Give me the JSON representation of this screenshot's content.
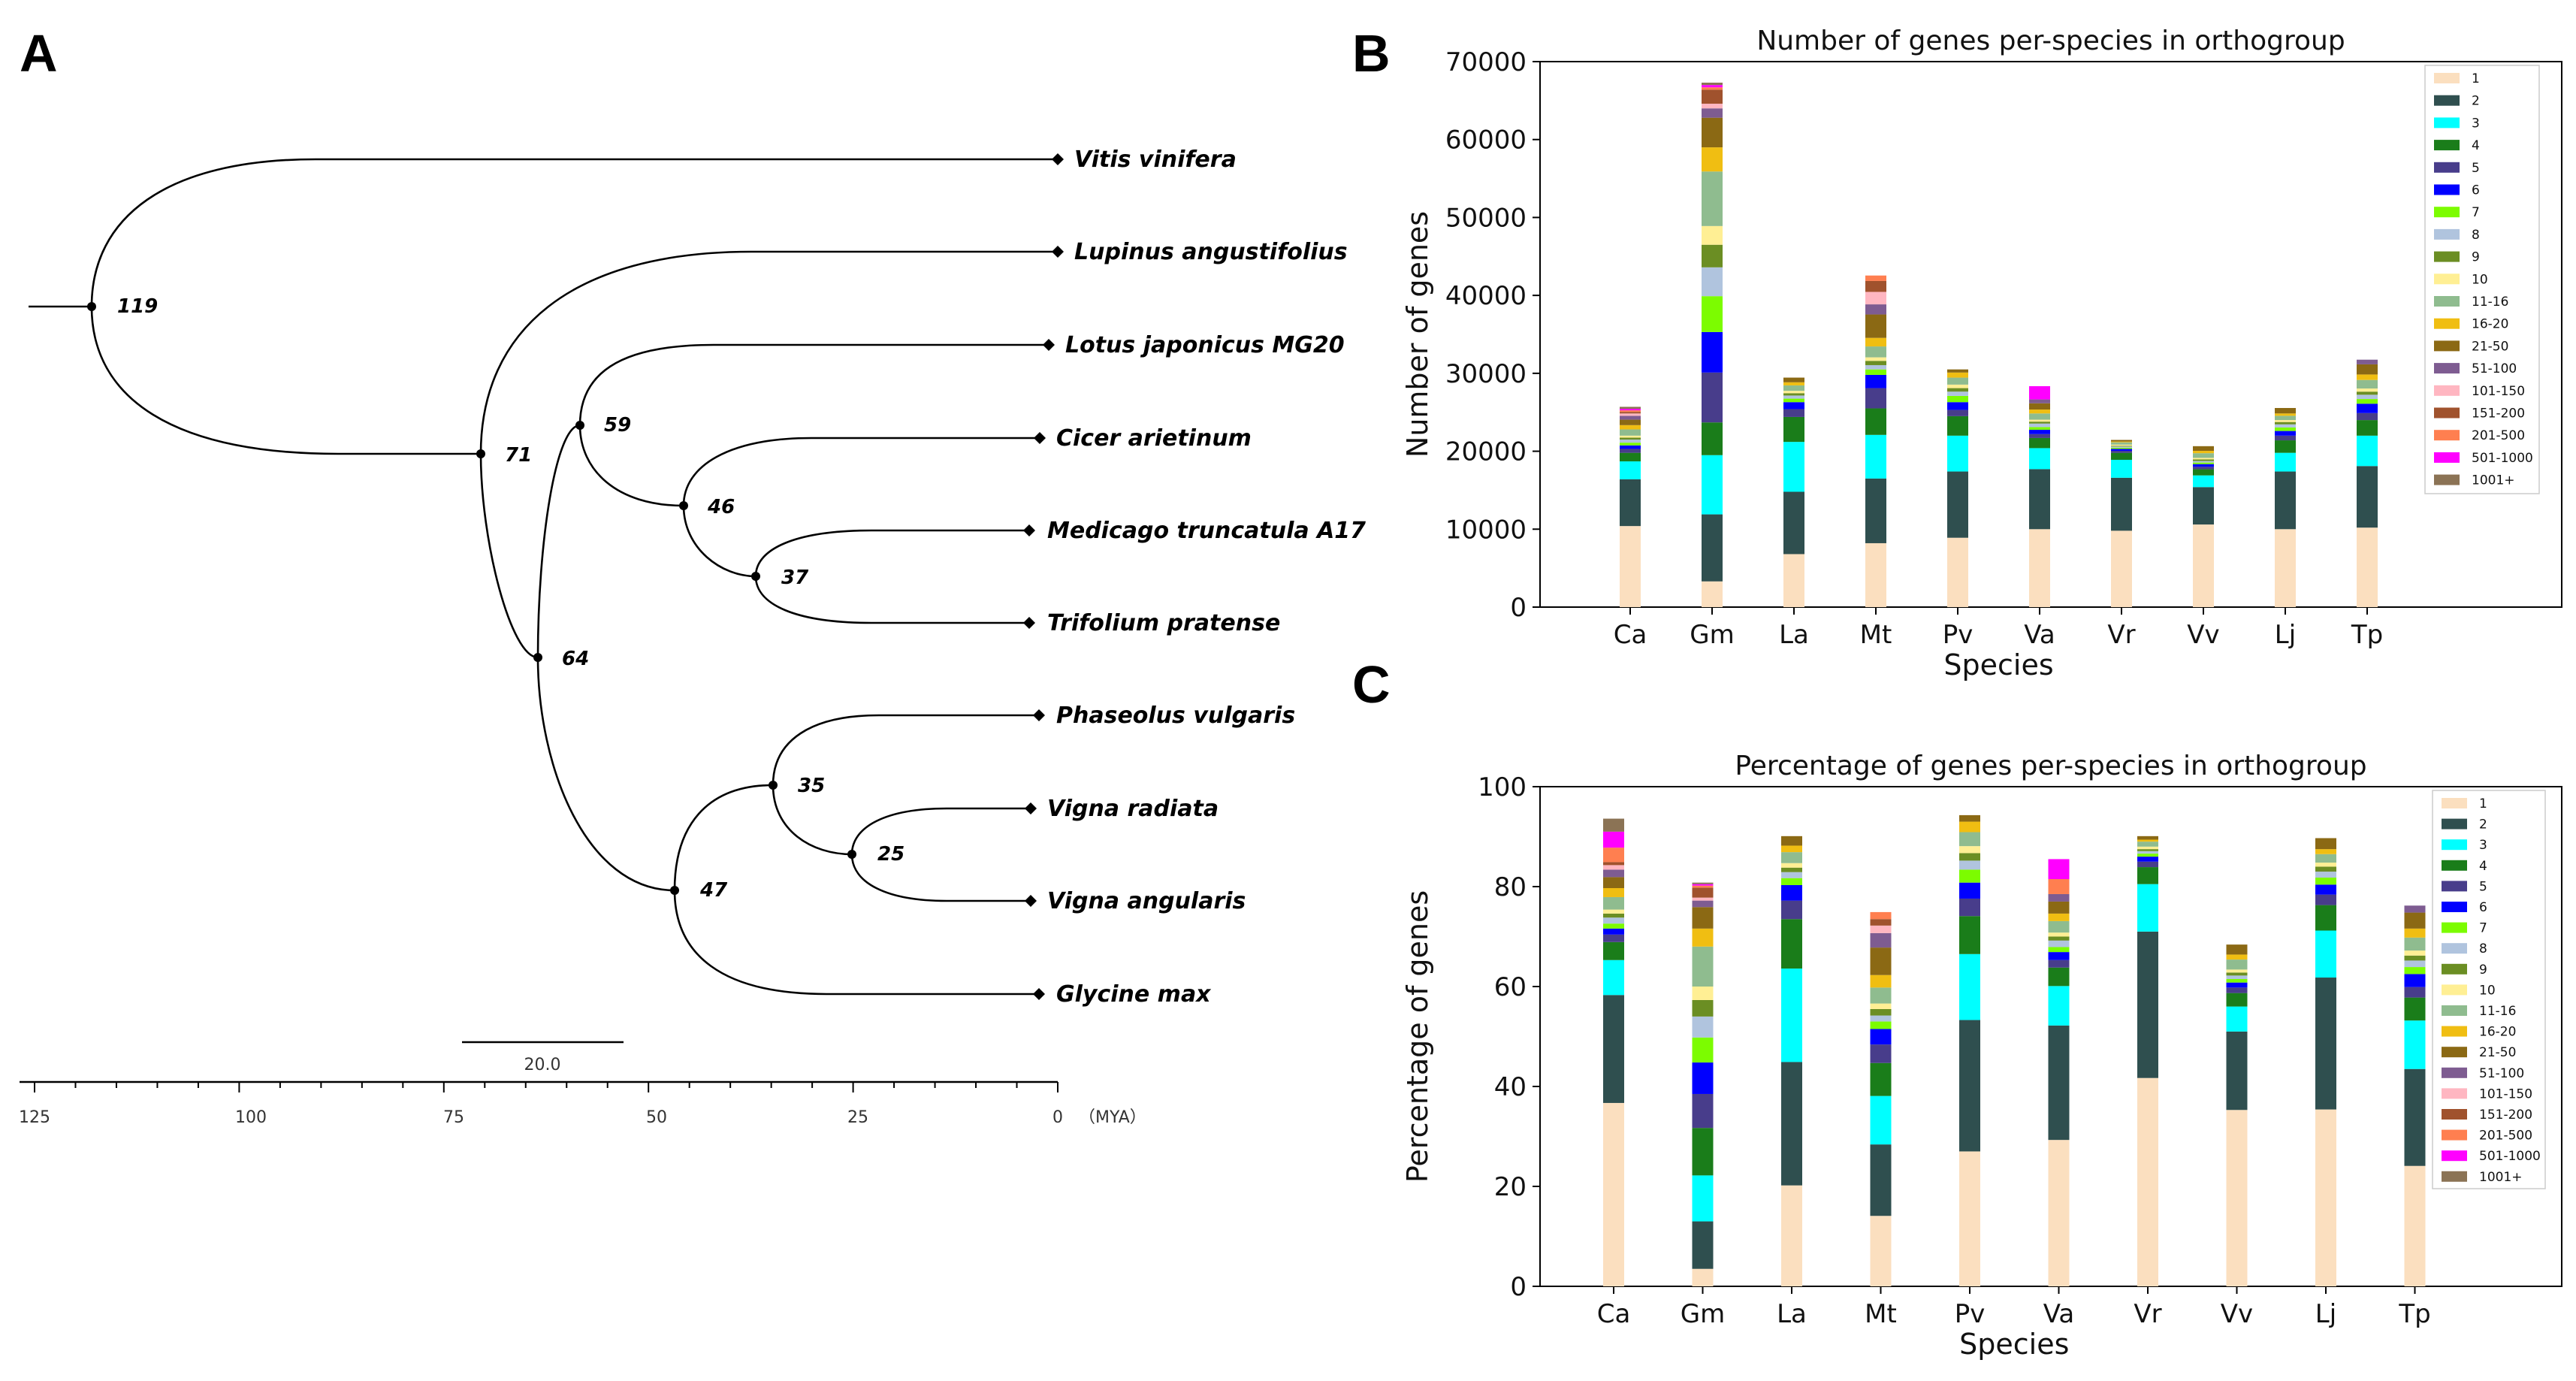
{
  "panels": {
    "a": "A",
    "b": "B",
    "c": "C"
  },
  "tree": {
    "taxa": [
      "Vitis vinifera",
      "Lupinus angustifolius",
      "Lotus japonicus MG20",
      "Cicer arietinum",
      "Medicago truncatula A17",
      "Trifolium pratense",
      "Phaseolus vulgaris",
      "Vigna radiata",
      "Vigna angularis",
      "Glycine max"
    ],
    "node_ages": [
      "119",
      "71",
      "59",
      "46",
      "37",
      "64",
      "35",
      "25",
      "47"
    ],
    "scale_bar_label": "20.0",
    "timeline_ticks": [
      "125",
      "100",
      "75",
      "50",
      "25",
      "0"
    ],
    "timeline_unit": "（MYA）"
  },
  "chart_data": [
    {
      "type": "bar",
      "stacked": true,
      "title": "Number of genes per-species in orthogroup",
      "xlabel": "Species",
      "ylabel": "Number of genes",
      "ylim": [
        0,
        70000
      ],
      "yticks": [
        "0",
        "10000",
        "20000",
        "30000",
        "40000",
        "50000",
        "60000",
        "70000"
      ],
      "legend_position": "top-right",
      "categories": [
        "Ca",
        "Gm",
        "La",
        "Mt",
        "Pv",
        "Va",
        "Vr",
        "Vv",
        "Lj",
        "Tp"
      ],
      "series": [
        {
          "name": "1",
          "color": "#fbdfbf",
          "values": [
            10400,
            3300,
            6800,
            8200,
            8900,
            10000,
            9800,
            10600,
            10000,
            10200
          ]
        },
        {
          "name": "2",
          "color": "#2f4f4f",
          "values": [
            6000,
            8600,
            8000,
            8300,
            8500,
            7700,
            6800,
            4800,
            7400,
            7900
          ]
        },
        {
          "name": "3",
          "color": "#00ffff",
          "values": [
            2300,
            7600,
            6400,
            5600,
            4600,
            2700,
            2300,
            1500,
            2400,
            3900
          ]
        },
        {
          "name": "4",
          "color": "#1a7d1a",
          "values": [
            1100,
            4200,
            3200,
            3400,
            2500,
            1300,
            900,
            800,
            1600,
            2000
          ]
        },
        {
          "name": "5",
          "color": "#483d8b",
          "values": [
            500,
            6400,
            1000,
            2600,
            800,
            500,
            250,
            300,
            600,
            900
          ]
        },
        {
          "name": "6",
          "color": "#0000ff",
          "values": [
            450,
            5200,
            900,
            1700,
            1000,
            550,
            250,
            350,
            600,
            1200
          ]
        },
        {
          "name": "7",
          "color": "#7cfc00",
          "values": [
            350,
            4600,
            450,
            700,
            800,
            350,
            150,
            200,
            450,
            600
          ]
        },
        {
          "name": "8",
          "color": "#b0c4de",
          "values": [
            400,
            3700,
            400,
            550,
            550,
            450,
            150,
            200,
            400,
            550
          ]
        },
        {
          "name": "9",
          "color": "#6b8e23",
          "values": [
            250,
            2900,
            300,
            550,
            450,
            250,
            100,
            200,
            300,
            400
          ]
        },
        {
          "name": "10",
          "color": "#ffef94",
          "values": [
            250,
            2400,
            300,
            450,
            450,
            250,
            150,
            200,
            250,
            400
          ]
        },
        {
          "name": "11-16",
          "color": "#8fbc8f",
          "values": [
            800,
            7000,
            700,
            1400,
            900,
            800,
            300,
            600,
            550,
            1100
          ]
        },
        {
          "name": "16-20",
          "color": "#f0be12",
          "values": [
            550,
            3100,
            400,
            1100,
            650,
            500,
            100,
            300,
            300,
            700
          ]
        },
        {
          "name": "21-50",
          "color": "#8b6914",
          "values": [
            700,
            3800,
            600,
            3000,
            400,
            800,
            200,
            600,
            700,
            1300
          ]
        },
        {
          "name": "51-100",
          "color": "#7e5c91",
          "values": [
            500,
            1200,
            0,
            1300,
            0,
            500,
            0,
            0,
            0,
            600
          ]
        },
        {
          "name": "101-150",
          "color": "#ffb6c1",
          "values": [
            300,
            600,
            0,
            1600,
            0,
            0,
            0,
            0,
            0,
            0
          ]
        },
        {
          "name": "151-200",
          "color": "#a0522d",
          "values": [
            200,
            1800,
            0,
            1400,
            0,
            0,
            0,
            0,
            0,
            0
          ]
        },
        {
          "name": "201-500",
          "color": "#ff7f50",
          "values": [
            200,
            300,
            0,
            700,
            0,
            0,
            0,
            0,
            0,
            0
          ]
        },
        {
          "name": "501-1000",
          "color": "#ff00ff",
          "values": [
            200,
            300,
            0,
            0,
            0,
            1700,
            0,
            0,
            0,
            0
          ]
        },
        {
          "name": "1001+",
          "color": "#8b7355",
          "values": [
            250,
            300,
            0,
            0,
            0,
            0,
            0,
            0,
            0,
            0
          ]
        }
      ]
    },
    {
      "type": "bar",
      "stacked": true,
      "title": "Percentage of genes per-species in orthogroup",
      "xlabel": "Species",
      "ylabel": "Percentage of genes",
      "ylim": [
        0,
        100
      ],
      "yticks": [
        "0",
        "20",
        "40",
        "60",
        "80",
        "100"
      ],
      "legend_position": "top-right",
      "categories": [
        "Ca",
        "Gm",
        "La",
        "Mt",
        "Pv",
        "Va",
        "Vr",
        "Vv",
        "Lj",
        "Tp"
      ],
      "series": [
        {
          "name": "1",
          "color": "#fbdfbf",
          "values": [
            36.7,
            3.5,
            20.2,
            14.1,
            27.0,
            29.3,
            41.7,
            35.3,
            35.4,
            24.1
          ]
        },
        {
          "name": "2",
          "color": "#2f4f4f",
          "values": [
            21.6,
            9.5,
            24.7,
            14.3,
            26.3,
            22.9,
            29.3,
            15.7,
            26.4,
            19.4
          ]
        },
        {
          "name": "3",
          "color": "#00ffff",
          "values": [
            7.0,
            9.2,
            18.7,
            9.7,
            13.2,
            7.9,
            9.5,
            5.0,
            9.4,
            9.7
          ]
        },
        {
          "name": "4",
          "color": "#1a7d1a",
          "values": [
            3.6,
            9.5,
            9.9,
            6.6,
            7.6,
            3.7,
            3.4,
            2.7,
            5.1,
            4.6
          ]
        },
        {
          "name": "5",
          "color": "#483d8b",
          "values": [
            1.5,
            6.8,
            3.7,
            3.7,
            3.5,
            1.5,
            1.1,
            1.1,
            2.1,
            2.1
          ]
        },
        {
          "name": "6",
          "color": "#0000ff",
          "values": [
            1.2,
            6.3,
            3.1,
            3.1,
            3.2,
            1.6,
            1.0,
            1.0,
            2.0,
            2.6
          ]
        },
        {
          "name": "7",
          "color": "#7cfc00",
          "values": [
            1.0,
            5.0,
            1.4,
            1.5,
            2.6,
            1.0,
            0.6,
            0.7,
            1.4,
            1.4
          ]
        },
        {
          "name": "8",
          "color": "#b0c4de",
          "values": [
            1.2,
            4.2,
            1.2,
            1.2,
            1.8,
            1.3,
            0.5,
            0.7,
            1.2,
            1.3
          ]
        },
        {
          "name": "9",
          "color": "#6b8e23",
          "values": [
            0.8,
            3.3,
            0.9,
            1.3,
            1.5,
            0.8,
            0.4,
            0.6,
            1.0,
            1.0
          ]
        },
        {
          "name": "10",
          "color": "#ffef94",
          "values": [
            0.8,
            2.7,
            0.9,
            1.1,
            1.4,
            0.8,
            0.5,
            0.6,
            0.8,
            1.0
          ]
        },
        {
          "name": "11-16",
          "color": "#8fbc8f",
          "values": [
            2.5,
            8.0,
            2.2,
            3.2,
            2.8,
            2.3,
            1.0,
            2.0,
            1.7,
            2.6
          ]
        },
        {
          "name": "16-20",
          "color": "#f0be12",
          "values": [
            1.8,
            3.6,
            1.3,
            2.5,
            2.1,
            1.5,
            0.4,
            1.0,
            1.0,
            1.8
          ]
        },
        {
          "name": "21-50",
          "color": "#8b6914",
          "values": [
            2.2,
            4.3,
            1.9,
            5.5,
            1.3,
            2.4,
            0.7,
            2.0,
            2.2,
            3.2
          ]
        },
        {
          "name": "51-100",
          "color": "#7e5c91",
          "values": [
            1.5,
            1.3,
            0,
            2.9,
            0,
            1.5,
            0,
            0,
            0,
            1.4
          ]
        },
        {
          "name": "101-150",
          "color": "#ffb6c1",
          "values": [
            0.9,
            0.6,
            0,
            1.5,
            0,
            0,
            0,
            0,
            0,
            0
          ]
        },
        {
          "name": "151-200",
          "color": "#a0522d",
          "values": [
            0.6,
            2.0,
            0,
            1.3,
            0,
            0,
            0,
            0,
            0,
            0
          ]
        },
        {
          "name": "201-500",
          "color": "#ff7f50",
          "values": [
            2.9,
            0.4,
            0,
            1.4,
            0,
            3.0,
            0,
            0,
            0,
            0
          ]
        },
        {
          "name": "501-1000",
          "color": "#ff00ff",
          "values": [
            3.2,
            0.3,
            0,
            0,
            0,
            4.0,
            0,
            0,
            0,
            0
          ]
        },
        {
          "name": "1001+",
          "color": "#8b7355",
          "values": [
            2.6,
            0.3,
            0,
            0,
            0,
            0,
            0,
            0,
            0,
            0
          ]
        }
      ]
    }
  ]
}
